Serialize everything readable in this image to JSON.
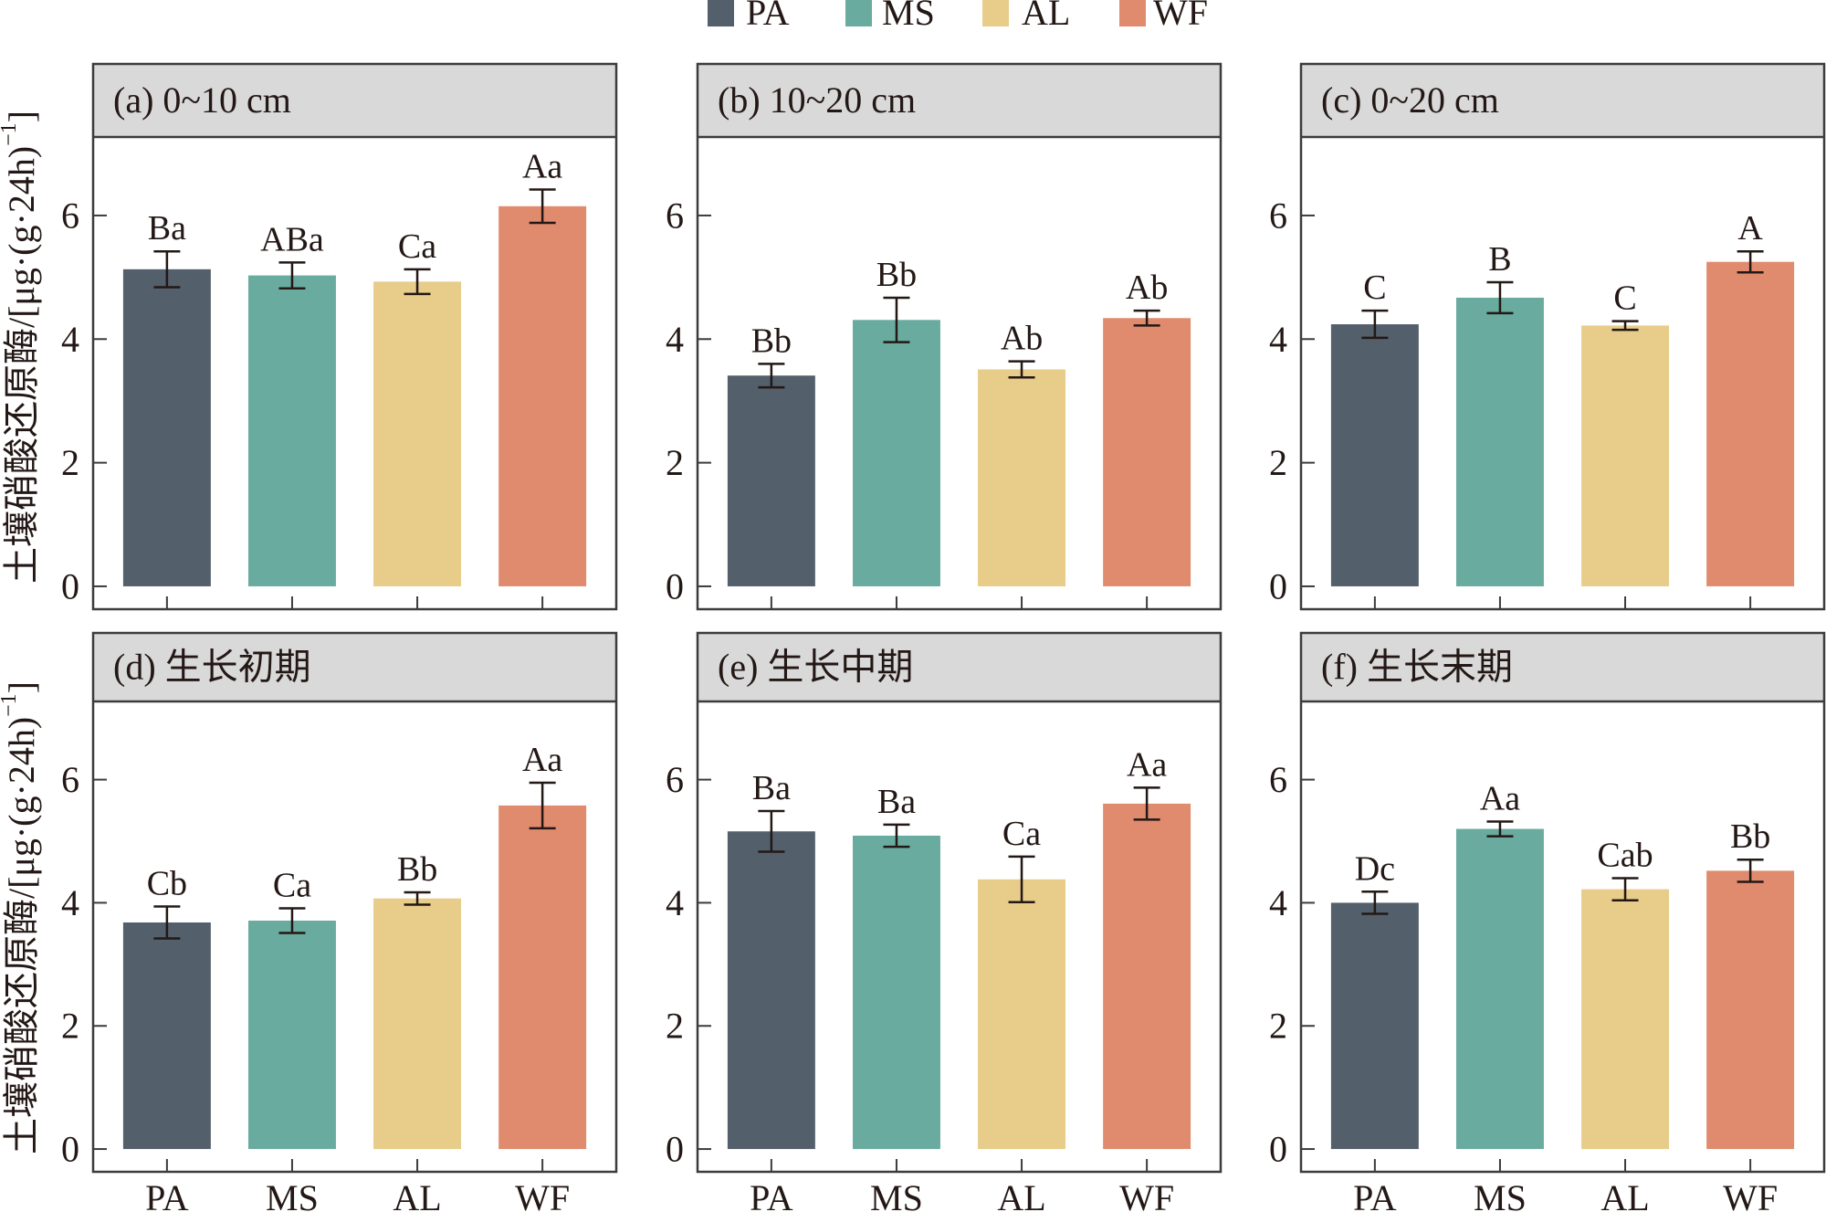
{
  "legend": [
    {
      "label": "PA",
      "color": "#535f6b"
    },
    {
      "label": "MS",
      "color": "#6aab9f"
    },
    {
      "label": "AL",
      "color": "#e8cc8a"
    },
    {
      "label": "WF",
      "color": "#e08b6d"
    }
  ],
  "legend_placement": "top-center",
  "y_axis_title": {
    "text": "土壤硝酸还原酶/[μg·(g·24h)",
    "superscript": "−1",
    "suffix": "]"
  },
  "style": {
    "strip_fill": "#d9d9d9",
    "frame_color": "#3c3c3c",
    "text_color": "#231815"
  },
  "chart_data": [
    {
      "id": "a",
      "type": "bar",
      "title": "(a) 0~10 cm",
      "categories": [
        "PA",
        "MS",
        "AL",
        "WF"
      ],
      "values": [
        5.13,
        5.03,
        4.93,
        6.15
      ],
      "errors": [
        0.29,
        0.21,
        0.2,
        0.27
      ],
      "labels": [
        "Ba",
        "ABa",
        "Ca",
        "Aa"
      ],
      "xlabel": "",
      "ylabel": "土壤硝酸还原酶/[μg·(g·24h)⁻¹]",
      "ylim": [
        -0.37,
        7.27
      ],
      "yticks": [
        0,
        2,
        4,
        6
      ],
      "ytick_labels": [
        "0",
        "2",
        "4",
        "6"
      ],
      "xtick_labels_visible": false,
      "grid": false
    },
    {
      "id": "b",
      "type": "bar",
      "title": "(b) 10~20 cm",
      "categories": [
        "PA",
        "MS",
        "AL",
        "WF"
      ],
      "values": [
        3.41,
        4.31,
        3.51,
        4.34
      ],
      "errors": [
        0.19,
        0.36,
        0.13,
        0.12
      ],
      "labels": [
        "Bb",
        "Bb",
        "Ab",
        "Ab"
      ],
      "xlabel": "",
      "ylabel": "",
      "ylim": [
        -0.37,
        7.27
      ],
      "yticks": [
        0,
        2,
        4,
        6
      ],
      "ytick_labels": [
        "0",
        "2",
        "4",
        "6"
      ],
      "xtick_labels_visible": false,
      "grid": false
    },
    {
      "id": "c",
      "type": "bar",
      "title": "(c) 0~20 cm",
      "categories": [
        "PA",
        "MS",
        "AL",
        "WF"
      ],
      "values": [
        4.24,
        4.67,
        4.22,
        5.25
      ],
      "errors": [
        0.22,
        0.25,
        0.07,
        0.17
      ],
      "labels": [
        "C",
        "B",
        "C",
        "A"
      ],
      "xlabel": "",
      "ylabel": "",
      "ylim": [
        -0.37,
        7.27
      ],
      "yticks": [
        0,
        2,
        4,
        6
      ],
      "ytick_labels": [
        "0",
        "2",
        "4",
        "6"
      ],
      "xtick_labels_visible": false,
      "grid": false
    },
    {
      "id": "d",
      "type": "bar",
      "title": "(d) 生长初期",
      "categories": [
        "PA",
        "MS",
        "AL",
        "WF"
      ],
      "values": [
        3.68,
        3.71,
        4.07,
        5.58
      ],
      "errors": [
        0.26,
        0.2,
        0.1,
        0.37
      ],
      "labels": [
        "Cb",
        "Ca",
        "Bb",
        "Aa"
      ],
      "xlabel": "",
      "ylabel": "土壤硝酸还原酶/[μg·(g·24h)⁻¹]",
      "ylim": [
        -0.37,
        7.27
      ],
      "yticks": [
        0,
        2,
        4,
        6
      ],
      "ytick_labels": [
        "0",
        "2",
        "4",
        "6"
      ],
      "xtick_labels_visible": true,
      "grid": false
    },
    {
      "id": "e",
      "type": "bar",
      "title": "(e) 生长中期",
      "categories": [
        "PA",
        "MS",
        "AL",
        "WF"
      ],
      "values": [
        5.16,
        5.09,
        4.38,
        5.61
      ],
      "errors": [
        0.33,
        0.18,
        0.37,
        0.26
      ],
      "labels": [
        "Ba",
        "Ba",
        "Ca",
        "Aa"
      ],
      "xlabel": "",
      "ylabel": "",
      "ylim": [
        -0.37,
        7.27
      ],
      "yticks": [
        0,
        2,
        4,
        6
      ],
      "ytick_labels": [
        "0",
        "2",
        "4",
        "6"
      ],
      "xtick_labels_visible": true,
      "grid": false
    },
    {
      "id": "f",
      "type": "bar",
      "title": "(f) 生长末期",
      "categories": [
        "PA",
        "MS",
        "AL",
        "WF"
      ],
      "values": [
        4.0,
        5.2,
        4.22,
        4.52
      ],
      "errors": [
        0.18,
        0.12,
        0.18,
        0.18
      ],
      "labels": [
        "Dc",
        "Aa",
        "Cab",
        "Bb"
      ],
      "xlabel": "",
      "ylabel": "",
      "ylim": [
        -0.37,
        7.27
      ],
      "yticks": [
        0,
        2,
        4,
        6
      ],
      "ytick_labels": [
        "0",
        "2",
        "4",
        "6"
      ],
      "xtick_labels_visible": true,
      "grid": false
    }
  ]
}
